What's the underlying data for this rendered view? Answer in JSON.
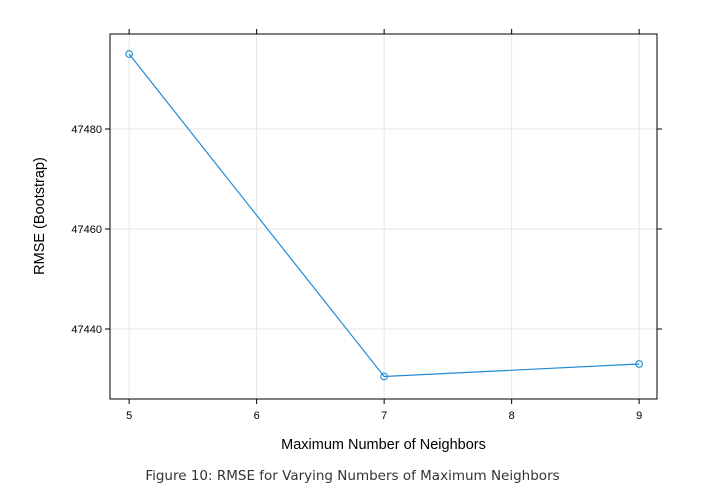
{
  "chart_data": {
    "type": "line",
    "xlabel": "Maximum Number of Neighbors",
    "ylabel": "RMSE (Bootstrap)",
    "x": [
      5,
      7,
      9
    ],
    "series": [
      {
        "values": [
          47495,
          47430.5,
          47433
        ],
        "color": "#1f8ad6"
      }
    ],
    "xticks": [
      5,
      6,
      7,
      8,
      9
    ],
    "yticks": [
      47440,
      47460,
      47480
    ],
    "xlim": [
      4.85,
      9.14
    ],
    "ylim": [
      47426,
      47499
    ],
    "grid": true,
    "markers": "open-circle"
  },
  "caption": "Figure 10: RMSE for Varying Numbers of Maximum Neighbors"
}
